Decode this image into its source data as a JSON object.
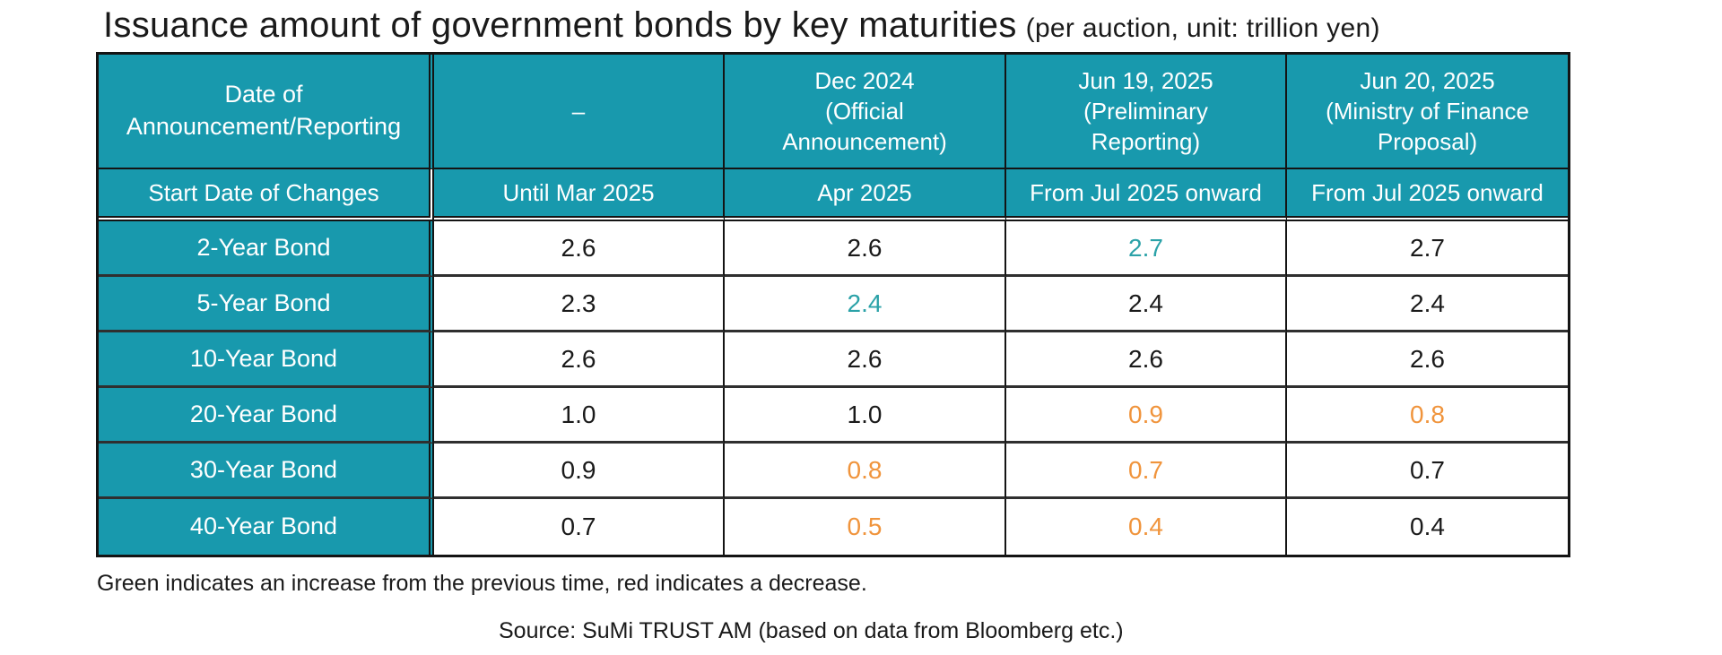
{
  "title": {
    "main": "Issuance amount of government bonds by key maturities",
    "unit": "(per auction, unit: trillion yen)"
  },
  "colors": {
    "header_bg": "#1899ad",
    "increase": "#2ba2a8",
    "decrease": "#f0943c",
    "text": "#1a1a1a"
  },
  "table": {
    "corner_header": "Date of\nAnnouncement/Reporting",
    "start_date_header": "Start Date of Changes",
    "columns": [
      {
        "announcement": "–",
        "start_date": "Until Mar 2025"
      },
      {
        "announcement": "Dec 2024\n(Official\nAnnouncement)",
        "start_date": "Apr 2025"
      },
      {
        "announcement": "Jun 19, 2025\n(Preliminary\nReporting)",
        "start_date": "From Jul 2025 onward"
      },
      {
        "announcement": "Jun 20, 2025\n(Ministry of Finance\nProposal)",
        "start_date": "From Jul 2025 onward"
      }
    ],
    "rows": [
      {
        "label": "2-Year Bond",
        "values": [
          {
            "v": "2.6",
            "c": "none"
          },
          {
            "v": "2.6",
            "c": "none"
          },
          {
            "v": "2.7",
            "c": "increase"
          },
          {
            "v": "2.7",
            "c": "none"
          }
        ]
      },
      {
        "label": "5-Year Bond",
        "values": [
          {
            "v": "2.3",
            "c": "none"
          },
          {
            "v": "2.4",
            "c": "increase"
          },
          {
            "v": "2.4",
            "c": "none"
          },
          {
            "v": "2.4",
            "c": "none"
          }
        ]
      },
      {
        "label": "10-Year Bond",
        "values": [
          {
            "v": "2.6",
            "c": "none"
          },
          {
            "v": "2.6",
            "c": "none"
          },
          {
            "v": "2.6",
            "c": "none"
          },
          {
            "v": "2.6",
            "c": "none"
          }
        ]
      },
      {
        "label": "20-Year Bond",
        "values": [
          {
            "v": "1.0",
            "c": "none"
          },
          {
            "v": "1.0",
            "c": "none"
          },
          {
            "v": "0.9",
            "c": "decrease"
          },
          {
            "v": "0.8",
            "c": "decrease"
          }
        ]
      },
      {
        "label": "30-Year Bond",
        "values": [
          {
            "v": "0.9",
            "c": "none"
          },
          {
            "v": "0.8",
            "c": "decrease"
          },
          {
            "v": "0.7",
            "c": "decrease"
          },
          {
            "v": "0.7",
            "c": "none"
          }
        ]
      },
      {
        "label": "40-Year Bond",
        "values": [
          {
            "v": "0.7",
            "c": "none"
          },
          {
            "v": "0.5",
            "c": "decrease"
          },
          {
            "v": "0.4",
            "c": "decrease"
          },
          {
            "v": "0.4",
            "c": "none"
          }
        ]
      }
    ]
  },
  "notes": {
    "legend": "Green indicates an increase from the previous time, red indicates a decrease.",
    "source": "Source: SuMi TRUST AM (based on data from Bloomberg etc.)"
  }
}
